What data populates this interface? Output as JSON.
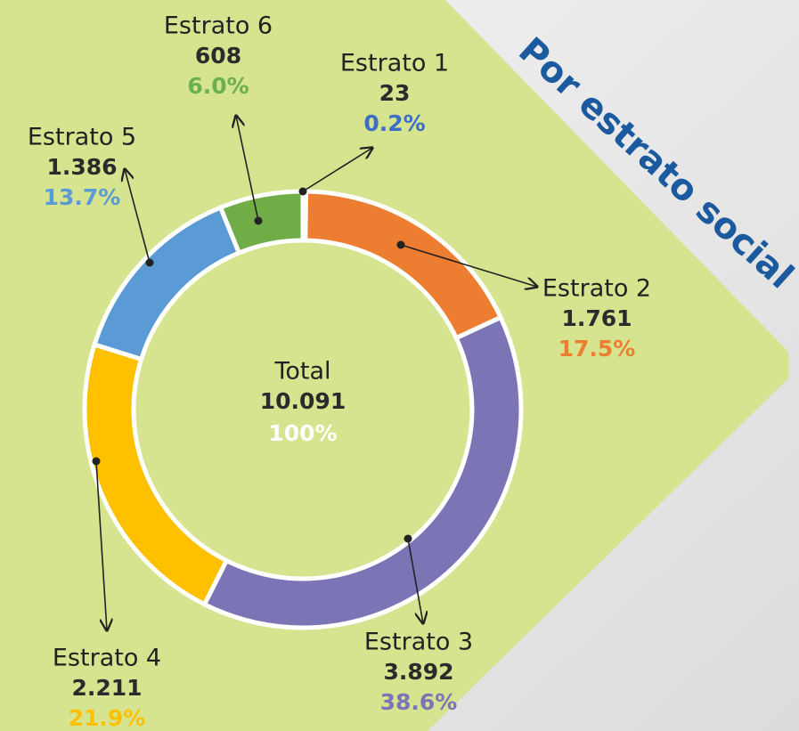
{
  "chart_data": {
    "type": "donut",
    "title": "Por estrato social",
    "categories": [
      "Estrato 1",
      "Estrato 2",
      "Estrato 3",
      "Estrato 4",
      "Estrato 5",
      "Estrato 6"
    ],
    "values": [
      23,
      1761,
      3892,
      2211,
      1386,
      608
    ],
    "value_labels": [
      "23",
      "1.761",
      "3.892",
      "2.211",
      "1.386",
      "608"
    ],
    "percentages": [
      0.2,
      17.5,
      38.6,
      21.9,
      13.7,
      6.0
    ],
    "percentage_labels": [
      "0.2%",
      "17.5%",
      "38.6%",
      "21.9%",
      "13.7%",
      "6.0%"
    ],
    "colors": [
      "#4a5fb0",
      "#ed7d31",
      "#7b74b5",
      "#ffc000",
      "#5b9bd5",
      "#70ad47"
    ],
    "label_colors": [
      "#3a6fc4",
      "#ed7d31",
      "#7b74b5",
      "#ffc000",
      "#5b9bd5",
      "#6ab04c"
    ],
    "total_label": "Total",
    "total": 10091,
    "total_value_label": "10.091",
    "total_percentage": 100,
    "total_percentage_label": "100%"
  }
}
